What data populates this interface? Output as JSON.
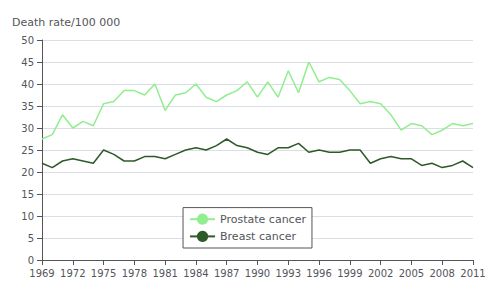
{
  "chart_data": {
    "type": "line",
    "ylabel": "Death rate/100 000",
    "x": [
      1969,
      1970,
      1971,
      1972,
      1973,
      1974,
      1975,
      1976,
      1977,
      1978,
      1979,
      1980,
      1981,
      1982,
      1983,
      1984,
      1985,
      1986,
      1987,
      1988,
      1989,
      1990,
      1991,
      1992,
      1993,
      1994,
      1995,
      1996,
      1997,
      1998,
      1999,
      2000,
      2001,
      2002,
      2003,
      2004,
      2005,
      2006,
      2007,
      2008,
      2009,
      2010,
      2011
    ],
    "series": [
      {
        "name": "Prostate cancer",
        "color": "#90EE90",
        "values": [
          27.5,
          28.5,
          33.0,
          30.0,
          31.5,
          30.5,
          35.5,
          36.0,
          38.5,
          38.5,
          37.5,
          40.0,
          34.0,
          37.5,
          38.0,
          40.0,
          37.0,
          36.0,
          37.5,
          38.5,
          40.5,
          37.0,
          40.5,
          37.0,
          43.0,
          38.0,
          45.0,
          40.5,
          41.5,
          41.0,
          38.5,
          35.5,
          36.0,
          35.5,
          33.0,
          29.5,
          31.0,
          30.5,
          28.5,
          29.5,
          31.0,
          30.5,
          31.0
        ]
      },
      {
        "name": "Breast cancer",
        "color": "#2d5a27",
        "values": [
          22.0,
          21.0,
          22.5,
          23.0,
          22.5,
          22.0,
          25.0,
          24.0,
          22.5,
          22.5,
          23.5,
          23.5,
          23.0,
          24.0,
          25.0,
          25.5,
          25.0,
          26.0,
          27.5,
          26.0,
          25.5,
          24.5,
          24.0,
          25.5,
          25.5,
          26.5,
          24.5,
          25.0,
          24.5,
          24.5,
          25.0,
          25.0,
          22.0,
          23.0,
          23.5,
          23.0,
          23.0,
          21.5,
          22.0,
          21.0,
          21.5,
          22.5,
          21.0
        ]
      }
    ],
    "xlim": [
      1969,
      2011
    ],
    "xticks": [
      1969,
      1972,
      1975,
      1978,
      1981,
      1984,
      1987,
      1990,
      1993,
      1996,
      1999,
      2002,
      2005,
      2008,
      2011
    ],
    "ylim": [
      0,
      50
    ],
    "yticks": [
      0,
      5,
      10,
      15,
      20,
      25,
      30,
      35,
      40,
      45,
      50
    ],
    "grid": true,
    "legend": "lower center"
  }
}
